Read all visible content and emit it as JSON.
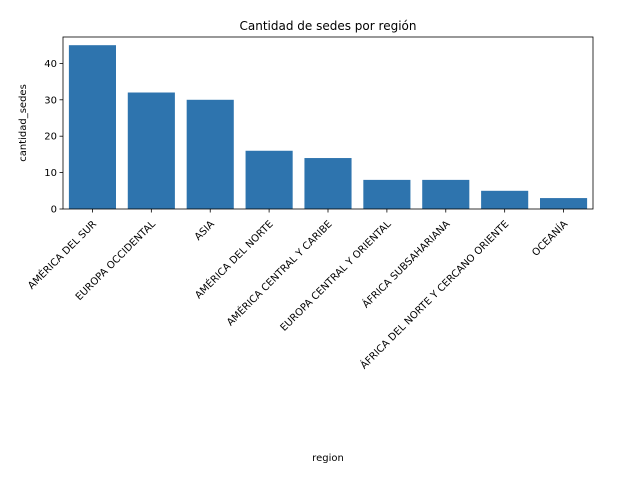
{
  "chart_data": {
    "type": "bar",
    "title": "Cantidad de sedes por región",
    "xlabel": "region",
    "ylabel": "cantidad_sedes",
    "categories": [
      "AMÉRICA  DEL  SUR",
      "EUROPA  OCCIDENTAL",
      "ASIA",
      "AMÉRICA  DEL  NORTE",
      "AMÉRICA  CENTRAL  Y  CARIBE",
      "EUROPA  CENTRAL  Y  ORIENTAL",
      "ÁFRICA  SUBSAHARIANA",
      "ÁFRICA  DEL  NORTE  Y  CERCANO  ORIENTE",
      "OCEANÍA"
    ],
    "values": [
      45,
      32,
      30,
      16,
      14,
      8,
      8,
      5,
      3
    ],
    "ylim": [
      0,
      47.25
    ],
    "yticks": [
      0,
      10,
      20,
      30,
      40
    ],
    "bar_color": "#2e74ae",
    "grid": false,
    "legend": "none"
  }
}
